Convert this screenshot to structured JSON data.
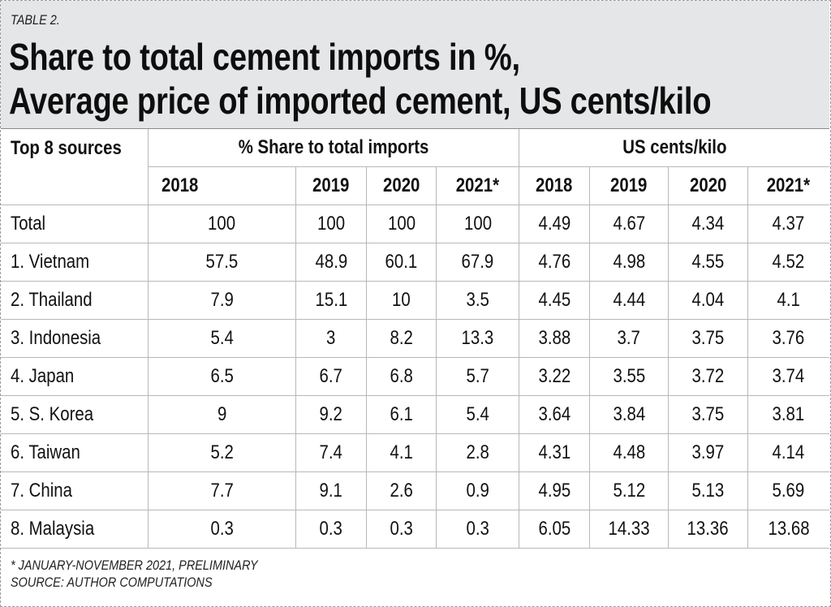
{
  "header": {
    "label": "TABLE 2.",
    "title_line1": "Share to total cement imports in %,",
    "title_line2": "Average price of imported cement, US cents/kilo"
  },
  "table": {
    "first_col_header": "Top 8 sources",
    "group_headers": [
      "% Share to total imports",
      "US cents/kilo"
    ],
    "years": [
      "2018",
      "2019",
      "2020",
      "2021*",
      "2018",
      "2019",
      "2020",
      "2021*"
    ],
    "rows": [
      {
        "source": "Total",
        "values": [
          "100",
          "100",
          "100",
          "100",
          "4.49",
          "4.67",
          "4.34",
          "4.37"
        ]
      },
      {
        "source": "1. Vietnam",
        "values": [
          "57.5",
          "48.9",
          "60.1",
          "67.9",
          "4.76",
          "4.98",
          "4.55",
          "4.52"
        ]
      },
      {
        "source": "2. Thailand",
        "values": [
          "7.9",
          "15.1",
          "10",
          "3.5",
          "4.45",
          "4.44",
          "4.04",
          "4.1"
        ]
      },
      {
        "source": "3. Indonesia",
        "values": [
          "5.4",
          "3",
          "8.2",
          "13.3",
          "3.88",
          "3.7",
          "3.75",
          "3.76"
        ]
      },
      {
        "source": "4. Japan",
        "values": [
          "6.5",
          "6.7",
          "6.8",
          "5.7",
          "3.22",
          "3.55",
          "3.72",
          "3.74"
        ]
      },
      {
        "source": "5. S. Korea",
        "values": [
          "9",
          "9.2",
          "6.1",
          "5.4",
          "3.64",
          "3.84",
          "3.75",
          "3.81"
        ]
      },
      {
        "source": "6. Taiwan",
        "values": [
          "5.2",
          "7.4",
          "4.1",
          "2.8",
          "4.31",
          "4.48",
          "3.97",
          "4.14"
        ]
      },
      {
        "source": "7. China",
        "values": [
          "7.7",
          "9.1",
          "2.6",
          "0.9",
          "4.95",
          "5.12",
          "5.13",
          "5.69"
        ]
      },
      {
        "source": "8. Malaysia",
        "values": [
          "0.3",
          "0.3",
          "0.3",
          "0.3",
          "6.05",
          "14.33",
          "13.36",
          "13.68"
        ]
      }
    ]
  },
  "footer": {
    "note": "* JANUARY-NOVEMBER 2021, PRELIMINARY",
    "source": "SOURCE: AUTHOR COMPUTATIONS"
  }
}
